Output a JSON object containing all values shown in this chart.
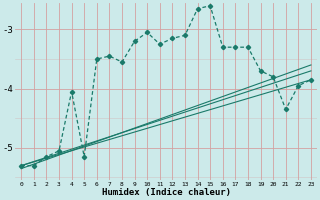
{
  "title": "",
  "xlabel": "Humidex (Indice chaleur)",
  "bg_color": "#cceaea",
  "line_color": "#1a7a6a",
  "grid_color": "#d4a0a0",
  "xlim": [
    -0.5,
    23.5
  ],
  "ylim": [
    -5.55,
    -2.55
  ],
  "yticks": [
    -5,
    -4,
    -3
  ],
  "xticks": [
    0,
    1,
    2,
    3,
    4,
    5,
    6,
    7,
    8,
    9,
    10,
    11,
    12,
    13,
    14,
    15,
    16,
    17,
    18,
    19,
    20,
    21,
    22,
    23
  ],
  "line1_x": [
    0,
    1,
    2,
    3,
    4,
    5,
    6,
    7,
    8,
    9,
    10,
    11,
    12,
    13,
    14,
    15,
    16,
    17,
    18,
    19,
    20,
    21,
    22,
    23
  ],
  "line1_y": [
    -5.3,
    -5.3,
    -5.15,
    -5.05,
    -4.05,
    -5.15,
    -3.5,
    -3.45,
    -3.55,
    -3.2,
    -3.05,
    -3.25,
    -3.15,
    -3.1,
    -2.65,
    -2.6,
    -3.3,
    -3.3,
    -3.3,
    -3.7,
    -3.8,
    -4.35,
    -3.95,
    -3.85
  ],
  "line2_x": [
    0,
    23
  ],
  "line2_y": [
    -5.3,
    -3.85
  ],
  "line3_x": [
    0,
    23
  ],
  "line3_y": [
    -5.3,
    -3.7
  ],
  "line4_x": [
    0,
    23
  ],
  "line4_y": [
    -5.35,
    -3.6
  ]
}
